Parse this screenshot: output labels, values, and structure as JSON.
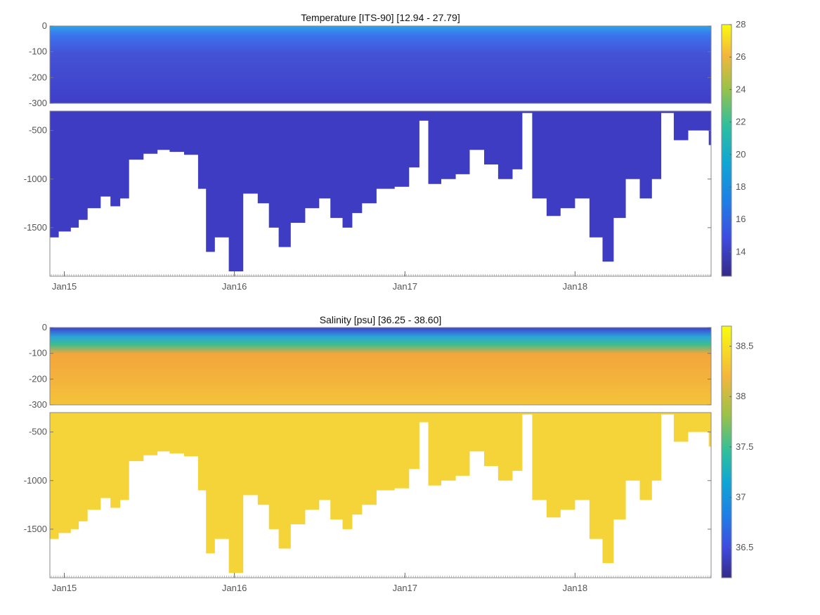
{
  "chart_data": [
    {
      "type": "heatmap",
      "title": "Temperature [ITS-90]   [12.94 - 27.79]",
      "variable": "temperature",
      "colormap": "parula",
      "color_range": [
        12.5,
        28
      ],
      "colorbar_ticks": [
        14,
        16,
        18,
        20,
        22,
        24,
        26,
        28
      ],
      "colorbar_tick_labels": [
        "14",
        "16",
        "18",
        "20",
        "22",
        "24",
        "26",
        "28"
      ],
      "x_ticks": [
        "Jan15",
        "Jan16",
        "Jan17",
        "Jan18"
      ],
      "x_range": [
        "2014-12-01",
        "2018-10-20"
      ],
      "upper_panel": {
        "ylim": [
          -300,
          0
        ],
        "y_ticks": [
          0,
          -100,
          -200,
          -300
        ],
        "y_tick_labels": [
          "0",
          "-100",
          "-200",
          "-300"
        ]
      },
      "lower_panel": {
        "ylim": [
          -2000,
          -300
        ],
        "y_ticks": [
          -500,
          -1000,
          -1500
        ],
        "y_tick_labels": [
          "-500",
          "-1000",
          "-1500"
        ]
      },
      "profile_bottom_depth": [
        {
          "x": "2014-12-01",
          "depth": -1600
        },
        {
          "x": "2014-12-20",
          "depth": -1540
        },
        {
          "x": "2015-01-15",
          "depth": -1500
        },
        {
          "x": "2015-02-01",
          "depth": -1420
        },
        {
          "x": "2015-02-20",
          "depth": -1300
        },
        {
          "x": "2015-03-20",
          "depth": -1180
        },
        {
          "x": "2015-04-10",
          "depth": -1280
        },
        {
          "x": "2015-05-01",
          "depth": -1200
        },
        {
          "x": "2015-05-20",
          "depth": -800
        },
        {
          "x": "2015-06-20",
          "depth": -740
        },
        {
          "x": "2015-07-20",
          "depth": -700
        },
        {
          "x": "2015-08-15",
          "depth": -720
        },
        {
          "x": "2015-09-15",
          "depth": -750
        },
        {
          "x": "2015-10-15",
          "depth": -1100
        },
        {
          "x": "2015-11-01",
          "depth": -1750
        },
        {
          "x": "2015-11-20",
          "depth": -1600
        },
        {
          "x": "2015-12-20",
          "depth": -1950
        },
        {
          "x": "2016-01-20",
          "depth": -1150
        },
        {
          "x": "2016-02-20",
          "depth": -1250
        },
        {
          "x": "2016-03-15",
          "depth": -1500
        },
        {
          "x": "2016-04-05",
          "depth": -1700
        },
        {
          "x": "2016-05-01",
          "depth": -1450
        },
        {
          "x": "2016-06-01",
          "depth": -1300
        },
        {
          "x": "2016-07-01",
          "depth": -1200
        },
        {
          "x": "2016-07-25",
          "depth": -1400
        },
        {
          "x": "2016-08-20",
          "depth": -1500
        },
        {
          "x": "2016-09-10",
          "depth": -1350
        },
        {
          "x": "2016-10-01",
          "depth": -1250
        },
        {
          "x": "2016-11-01",
          "depth": -1100
        },
        {
          "x": "2016-12-10",
          "depth": -1080
        },
        {
          "x": "2017-01-10",
          "depth": -880
        },
        {
          "x": "2017-02-01",
          "depth": -400
        },
        {
          "x": "2017-02-20",
          "depth": -1050
        },
        {
          "x": "2017-03-20",
          "depth": -1000
        },
        {
          "x": "2017-04-20",
          "depth": -950
        },
        {
          "x": "2017-05-20",
          "depth": -700
        },
        {
          "x": "2017-06-20",
          "depth": -850
        },
        {
          "x": "2017-07-20",
          "depth": -1000
        },
        {
          "x": "2017-08-20",
          "depth": -900
        },
        {
          "x": "2017-09-10",
          "depth": -320
        },
        {
          "x": "2017-10-01",
          "depth": -1200
        },
        {
          "x": "2017-11-01",
          "depth": -1380
        },
        {
          "x": "2017-12-01",
          "depth": -1300
        },
        {
          "x": "2018-01-01",
          "depth": -1200
        },
        {
          "x": "2018-02-01",
          "depth": -1600
        },
        {
          "x": "2018-03-01",
          "depth": -1850
        },
        {
          "x": "2018-03-25",
          "depth": -1400
        },
        {
          "x": "2018-04-20",
          "depth": -1000
        },
        {
          "x": "2018-05-20",
          "depth": -1200
        },
        {
          "x": "2018-06-15",
          "depth": -1000
        },
        {
          "x": "2018-07-05",
          "depth": -320
        },
        {
          "x": "2018-08-01",
          "depth": -600
        },
        {
          "x": "2018-09-01",
          "depth": -500
        },
        {
          "x": "2018-10-15",
          "depth": -650
        }
      ]
    },
    {
      "type": "heatmap",
      "title": "Salinity [psu]   [36.25 - 38.60]",
      "variable": "salinity",
      "colormap": "parula",
      "color_range": [
        36.2,
        38.7
      ],
      "colorbar_ticks": [
        36.5,
        37,
        37.5,
        38,
        38.5
      ],
      "colorbar_tick_labels": [
        "36.5",
        "37",
        "37.5",
        "38",
        "38.5"
      ],
      "x_ticks": [
        "Jan15",
        "Jan16",
        "Jan17",
        "Jan18"
      ],
      "x_range": [
        "2014-12-01",
        "2018-10-20"
      ],
      "upper_panel": {
        "ylim": [
          -300,
          0
        ],
        "y_ticks": [
          0,
          -100,
          -200,
          -300
        ],
        "y_tick_labels": [
          "0",
          "-100",
          "-200",
          "-300"
        ]
      },
      "lower_panel": {
        "ylim": [
          -2000,
          -300
        ],
        "y_ticks": [
          -500,
          -1000,
          -1500
        ],
        "y_tick_labels": [
          "-500",
          "-1000",
          "-1500"
        ]
      }
    }
  ]
}
